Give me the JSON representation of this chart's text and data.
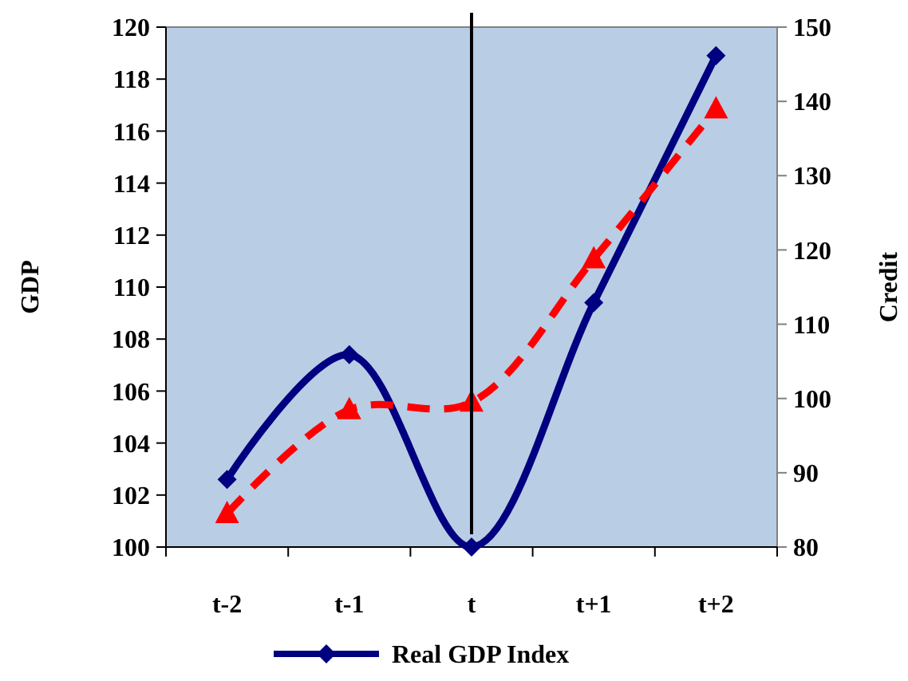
{
  "chart_data": {
    "type": "line",
    "ylabel": "GDP",
    "y2label": "Credit",
    "categories": [
      "t-2",
      "t-1",
      "t",
      "t+1",
      "t+2"
    ],
    "series": [
      {
        "name": "Real GDP Index",
        "color": "#000080",
        "values": [
          102.6,
          107.4,
          100,
          109.4,
          118.9
        ],
        "marker": "diamond",
        "line_style": "solid"
      },
      {
        "color": "#ff0000",
        "values": [
          84.5,
          98.5,
          99.5,
          118.8,
          139
        ],
        "axis": "y2",
        "marker": "triangle",
        "line_style": "dashed"
      }
    ],
    "ylim": [
      100,
      120
    ],
    "yticks": [
      100,
      102,
      104,
      106,
      108,
      110,
      112,
      114,
      116,
      118,
      120
    ],
    "y2lim": [
      80,
      150
    ],
    "y2ticks": [
      80,
      90,
      100,
      110,
      120,
      130,
      140,
      150
    ],
    "ref_lines": [
      {
        "axis": "x",
        "value": "t",
        "color": "#000000"
      }
    ],
    "legend": "bottom",
    "grid": false
  }
}
